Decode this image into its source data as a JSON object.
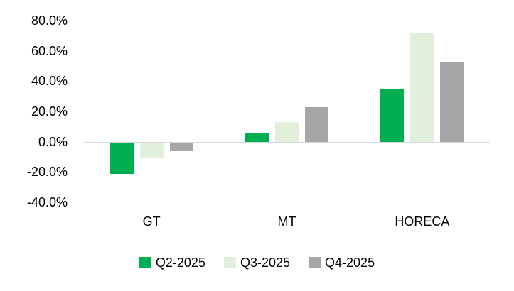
{
  "chart_data": {
    "type": "bar",
    "title": "",
    "xlabel": "",
    "ylabel": "",
    "categories": [
      "GT",
      "MT",
      "HORECA"
    ],
    "series": [
      {
        "name": "Q2-2025",
        "color": "#00AE52",
        "values": [
          -20,
          6,
          35
        ]
      },
      {
        "name": "Q3-2025",
        "color": "#E2EFDA",
        "values": [
          -10,
          13,
          72
        ]
      },
      {
        "name": "Q4-2025",
        "color": "#A6A6A6",
        "values": [
          -5,
          23,
          53
        ]
      }
    ],
    "value_unit": "%",
    "ylim": [
      -40,
      80
    ],
    "yticks": [
      {
        "value": 80,
        "label": "80.0%"
      },
      {
        "value": 60,
        "label": "60.0%"
      },
      {
        "value": 40,
        "label": "40.0%"
      },
      {
        "value": 20,
        "label": "20.0%"
      },
      {
        "value": 0,
        "label": "0.0%"
      },
      {
        "value": -20,
        "label": "-20.0%"
      },
      {
        "value": -40,
        "label": "-40.0%"
      }
    ],
    "grid": false,
    "legend_position": "bottom",
    "axis_line_color": "#D9D9D9",
    "text_color": "#000000",
    "background_color": "#FFFFFF"
  }
}
